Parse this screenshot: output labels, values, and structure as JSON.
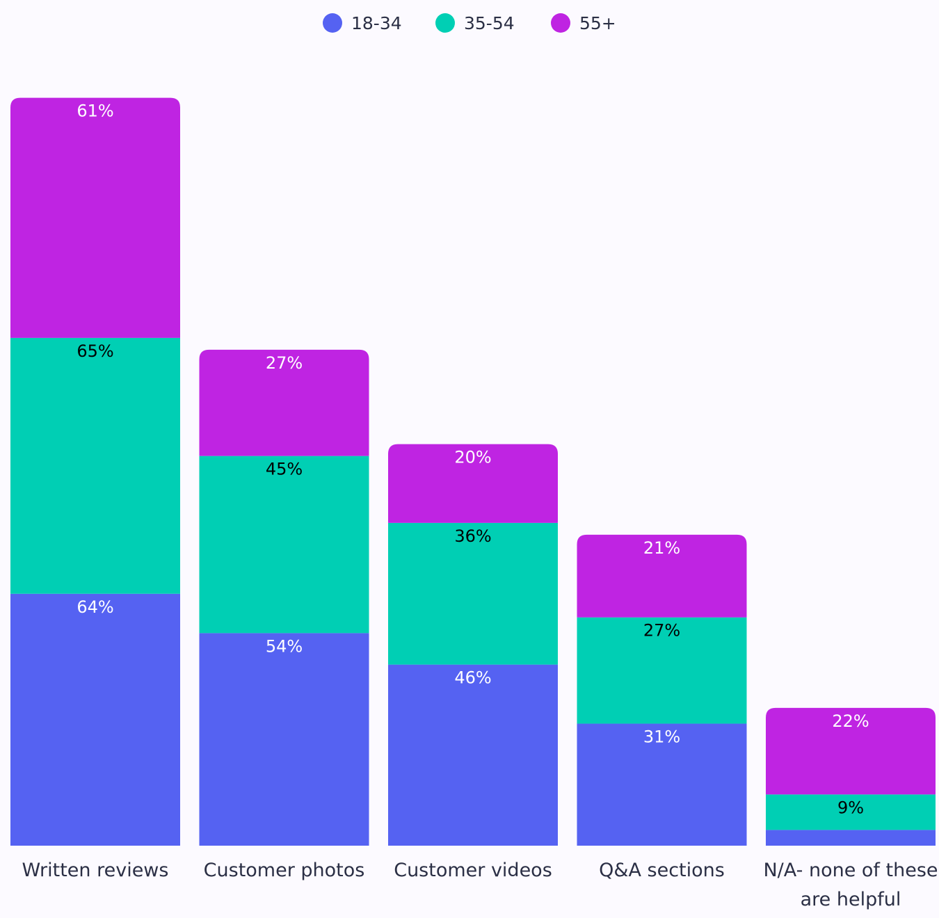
{
  "chart_data": {
    "type": "bar",
    "stacked": true,
    "categories": [
      [
        "Written reviews"
      ],
      [
        "Customer photos"
      ],
      [
        "Customer videos"
      ],
      [
        "Q&A sections"
      ],
      [
        "N/A- none of these",
        "are helpful"
      ]
    ],
    "series": [
      {
        "name": "18-34",
        "color": "#5562f2",
        "label_color": "#ffffff",
        "values": [
          64,
          54,
          46,
          31,
          4
        ],
        "labels": [
          "64%",
          "54%",
          "46%",
          "31%",
          ""
        ]
      },
      {
        "name": "35-54",
        "color": "#00cfb4",
        "label_color": "#000000",
        "values": [
          65,
          45,
          36,
          27,
          9
        ],
        "labels": [
          "65%",
          "45%",
          "36%",
          "27%",
          "9%"
        ]
      },
      {
        "name": "55+",
        "color": "#bf24e2",
        "label_color": "#ffffff",
        "values": [
          61,
          27,
          20,
          21,
          22
        ],
        "labels": [
          "61%",
          "27%",
          "20%",
          "21%",
          "22%"
        ]
      }
    ],
    "legend_position": "top-center",
    "grid": false,
    "y_axis_visible": false
  }
}
